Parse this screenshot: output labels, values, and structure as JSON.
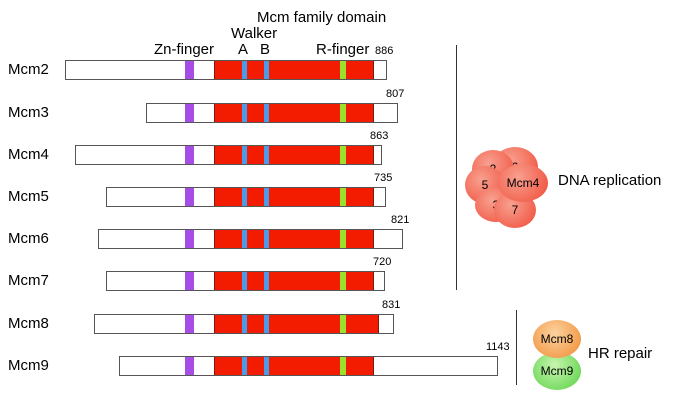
{
  "headers": {
    "family": "Mcm family domain",
    "walker": "Walker",
    "zn": "Zn-finger",
    "a": "A",
    "b": "B",
    "r": "R-finger"
  },
  "colors": {
    "mcm_domain": "#f41c00",
    "zn_finger": "#a64de6",
    "walker": "#4a9be8",
    "r_finger": "#9be02a"
  },
  "proteins": [
    {
      "name": "Mcm2",
      "length": "886"
    },
    {
      "name": "Mcm3",
      "length": "807"
    },
    {
      "name": "Mcm4",
      "length": "863"
    },
    {
      "name": "Mcm5",
      "length": "735"
    },
    {
      "name": "Mcm6",
      "length": "821"
    },
    {
      "name": "Mcm7",
      "length": "720"
    },
    {
      "name": "Mcm8",
      "length": "831"
    },
    {
      "name": "Mcm9",
      "length": "1143"
    }
  ],
  "complex1": {
    "subunits": [
      "2",
      "6",
      "5",
      "Mcm4",
      "3",
      "7"
    ],
    "label": "DNA replication"
  },
  "complex2": {
    "subunits": [
      "Mcm8",
      "Mcm9"
    ],
    "label": "HR repair"
  }
}
